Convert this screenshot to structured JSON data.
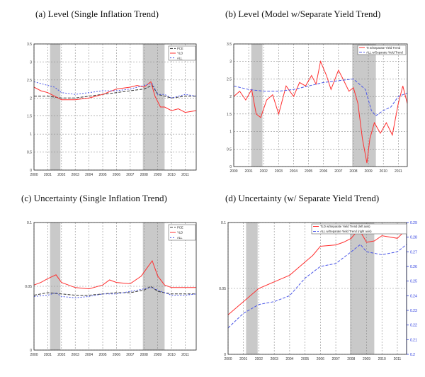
{
  "colors": {
    "recession": "#c9c9c9",
    "red": "#ff3030",
    "blue": "#4b57e8",
    "black": "#333333",
    "grid": "#8a8a8a",
    "right_axis": "#2233dd"
  },
  "years": [
    "2000",
    "2001",
    "2002",
    "2003",
    "2004",
    "2005",
    "2006",
    "2007",
    "2008",
    "2009",
    "2010",
    "2011"
  ],
  "recessions": [
    [
      2001.17,
      2001.92
    ],
    [
      2007.92,
      2009.5
    ]
  ],
  "chart_data": [
    {
      "type": "line",
      "title": "(a) Level (Single Inflation Trend)",
      "xlim": [
        2000,
        2011.8
      ],
      "ylim": [
        0,
        3.5
      ],
      "yticks": [
        0,
        0.5,
        1,
        1.5,
        2,
        2.5,
        3,
        3.5
      ],
      "ytick_labels": [
        "0",
        "0.5",
        "1",
        "1.5",
        "2",
        "2.5",
        "3",
        "3.5"
      ],
      "legend": [
        "PCE",
        "YLD",
        "ALL"
      ],
      "series": [
        {
          "name": "PCE",
          "color": "black",
          "dash": "4,2",
          "x": [
            2000,
            2001,
            2002,
            2003,
            2004,
            2005,
            2006,
            2007,
            2008,
            2008.6,
            2009,
            2009.5,
            2010,
            2011,
            2011.8
          ],
          "y": [
            2.05,
            2.05,
            2.0,
            2.0,
            2.05,
            2.1,
            2.15,
            2.2,
            2.25,
            2.35,
            2.1,
            2.05,
            2.0,
            2.05,
            2.05
          ]
        },
        {
          "name": "YLD",
          "color": "red",
          "dash": "",
          "x": [
            2000,
            2000.5,
            2001,
            2001.5,
            2002,
            2003,
            2004,
            2005,
            2006,
            2007,
            2007.5,
            2008,
            2008.5,
            2008.8,
            2009.2,
            2009.5,
            2010,
            2010.5,
            2011,
            2011.8
          ],
          "y": [
            2.3,
            2.2,
            2.15,
            2.05,
            1.95,
            1.95,
            2.0,
            2.1,
            2.25,
            2.3,
            2.35,
            2.3,
            2.45,
            2.05,
            1.75,
            1.75,
            1.65,
            1.7,
            1.6,
            1.65
          ]
        },
        {
          "name": "ALL",
          "color": "blue",
          "dash": "2,2",
          "x": [
            2000,
            2000.5,
            2001,
            2001.5,
            2002,
            2003,
            2004,
            2005,
            2006,
            2007,
            2008,
            2008.6,
            2009,
            2009.5,
            2010,
            2011,
            2011.8
          ],
          "y": [
            2.45,
            2.4,
            2.35,
            2.3,
            2.15,
            2.1,
            2.15,
            2.2,
            2.2,
            2.25,
            2.35,
            2.4,
            2.1,
            2.1,
            2.0,
            2.1,
            2.05
          ]
        }
      ]
    },
    {
      "type": "line",
      "title": "(b) Level (Model w/Separate Yield Trend)",
      "xlim": [
        2000,
        2011.6
      ],
      "ylim": [
        0,
        3.5
      ],
      "yticks": [
        0,
        0.5,
        1,
        1.5,
        2,
        2.5,
        3,
        3.5
      ],
      "ytick_labels": [
        "0",
        "0.5",
        "1",
        "1.5",
        "2",
        "2.5",
        "3",
        "3.5"
      ],
      "legend": [
        "TI w/Separate Yield Trend",
        "ALL w/Separate Yield Trend"
      ],
      "series": [
        {
          "name": "TI w/Separate Yield Trend",
          "color": "red",
          "dash": "",
          "x": [
            2000,
            2000.4,
            2000.8,
            2001.2,
            2001.5,
            2001.8,
            2002.2,
            2002.6,
            2003,
            2003.5,
            2004,
            2004.4,
            2004.8,
            2005.2,
            2005.5,
            2005.8,
            2006.2,
            2006.5,
            2007,
            2007.3,
            2007.7,
            2008,
            2008.3,
            2008.6,
            2008.9,
            2009.1,
            2009.4,
            2009.8,
            2010.2,
            2010.6,
            2011,
            2011.3,
            2011.6
          ],
          "y": [
            2.0,
            2.15,
            1.9,
            2.2,
            1.5,
            1.4,
            1.9,
            2.05,
            1.5,
            2.3,
            2.0,
            2.4,
            2.3,
            2.6,
            2.35,
            3.0,
            2.6,
            2.2,
            2.75,
            2.5,
            2.15,
            2.25,
            1.8,
            0.8,
            0.1,
            0.8,
            1.25,
            0.95,
            1.25,
            0.9,
            1.8,
            2.3,
            1.8
          ]
        },
        {
          "name": "ALL w/Separate Yield Trend",
          "color": "blue",
          "dash": "4,2",
          "x": [
            2000,
            2001,
            2002,
            2003,
            2004,
            2005,
            2006,
            2007,
            2008,
            2008.8,
            2009.2,
            2009.5,
            2010,
            2010.5,
            2011,
            2011.6
          ],
          "y": [
            2.3,
            2.2,
            2.15,
            2.15,
            2.2,
            2.3,
            2.4,
            2.45,
            2.5,
            2.2,
            1.6,
            1.45,
            1.6,
            1.7,
            2.0,
            2.1
          ]
        }
      ]
    },
    {
      "type": "line",
      "title": "(c) Uncertainty (Single Inflation Trend)",
      "xlim": [
        2000,
        2011.8
      ],
      "ylim": [
        0,
        0.1
      ],
      "yticks": [
        0,
        0.05,
        0.1
      ],
      "ytick_labels": [
        "0",
        "0.05",
        "0.1"
      ],
      "legend": [
        "PCE",
        "YLD",
        "ALL"
      ],
      "series": [
        {
          "name": "PCE",
          "color": "black",
          "dash": "4,2",
          "x": [
            2000,
            2001,
            2002,
            2003,
            2004,
            2005,
            2006,
            2007,
            2008,
            2008.5,
            2009,
            2010,
            2011,
            2011.8
          ],
          "y": [
            0.043,
            0.045,
            0.044,
            0.043,
            0.043,
            0.044,
            0.045,
            0.045,
            0.047,
            0.05,
            0.046,
            0.044,
            0.044,
            0.044
          ]
        },
        {
          "name": "YLD",
          "color": "red",
          "dash": "",
          "x": [
            2000,
            2000.5,
            2001,
            2001.6,
            2002,
            2003,
            2004,
            2005,
            2005.5,
            2006,
            2007,
            2007.8,
            2008.2,
            2008.6,
            2009,
            2009.5,
            2010,
            2011,
            2011.8
          ],
          "y": [
            0.051,
            0.053,
            0.056,
            0.059,
            0.053,
            0.049,
            0.048,
            0.051,
            0.055,
            0.053,
            0.052,
            0.058,
            0.064,
            0.07,
            0.058,
            0.051,
            0.049,
            0.049,
            0.049
          ]
        },
        {
          "name": "ALL",
          "color": "blue",
          "dash": "2,2",
          "x": [
            2000,
            2001,
            2001.6,
            2002,
            2003,
            2004,
            2005,
            2006,
            2007,
            2008,
            2008.6,
            2009,
            2009.5,
            2010,
            2011,
            2011.8
          ],
          "y": [
            0.042,
            0.043,
            0.045,
            0.042,
            0.041,
            0.042,
            0.044,
            0.044,
            0.046,
            0.048,
            0.049,
            0.047,
            0.045,
            0.043,
            0.043,
            0.044
          ]
        }
      ]
    },
    {
      "type": "line",
      "title": "(d) Uncertainty (w/ Separate Yield Trend)",
      "xlim": [
        2000,
        2011.6
      ],
      "ylim": [
        0,
        0.1
      ],
      "yticks": [
        0,
        0.05,
        0.1
      ],
      "ytick_labels": [
        "0",
        "0.05",
        "0.1"
      ],
      "y2lim": [
        0.2,
        0.29
      ],
      "y2ticks": [
        0.2,
        0.21,
        0.22,
        0.23,
        0.24,
        0.25,
        0.26,
        0.27,
        0.28,
        0.29
      ],
      "y2tick_labels": [
        "0.2",
        "0.21",
        "0.22",
        "0.23",
        "0.24",
        "0.25",
        "0.26",
        "0.27",
        "0.28",
        "0.29"
      ],
      "legend": [
        "TLD w/Separate Yield Trend (left axis)",
        "ALL w/Separate Yield Trend (right axis)"
      ],
      "series": [
        {
          "name": "TLD w/Separate Yield Trend (left axis)",
          "color": "red",
          "dash": "",
          "axis": "left",
          "x": [
            2000,
            2001,
            2002,
            2003,
            2004,
            2005,
            2005.5,
            2006,
            2007,
            2007.5,
            2008,
            2008.5,
            2009,
            2009.5,
            2010,
            2011,
            2011.6
          ],
          "y": [
            0.03,
            0.04,
            0.05,
            0.055,
            0.06,
            0.07,
            0.075,
            0.082,
            0.083,
            0.085,
            0.088,
            0.095,
            0.085,
            0.086,
            0.09,
            0.088,
            0.095
          ]
        },
        {
          "name": "ALL w/Separate Yield Trend (right axis)",
          "color": "blue",
          "dash": "4,2",
          "axis": "right",
          "x": [
            2000,
            2001,
            2002,
            2003,
            2004,
            2005,
            2006,
            2007,
            2008,
            2008.6,
            2009,
            2010,
            2011,
            2011.6
          ],
          "y": [
            0.218,
            0.228,
            0.234,
            0.236,
            0.24,
            0.252,
            0.26,
            0.262,
            0.27,
            0.275,
            0.27,
            0.268,
            0.27,
            0.275
          ]
        }
      ]
    }
  ]
}
